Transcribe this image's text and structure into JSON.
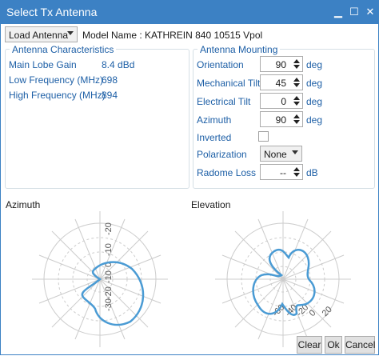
{
  "window": {
    "title": "Select Tx Antenna",
    "buttons": {
      "minimize": "▁",
      "maximize": "☐",
      "close": "✕"
    }
  },
  "toolbar": {
    "load_antenna": "Load Antenna",
    "model_label": "Model Name :",
    "model_value": "KATHREIN 840 10515 Vpol"
  },
  "characteristics": {
    "title": "Antenna Characteristics",
    "rows": [
      {
        "label": "Main Lobe Gain",
        "value": "8.4 dBd"
      },
      {
        "label": "Low Frequency (MHz)",
        "value": "698"
      },
      {
        "label": "High Frequency (MHz)",
        "value": "894"
      }
    ]
  },
  "mounting": {
    "title": "Antenna Mounting",
    "orientation": {
      "label": "Orientation",
      "value": "90",
      "unit": "deg"
    },
    "mech_tilt": {
      "label": "Mechanical Tilt",
      "value": "45",
      "unit": "deg"
    },
    "elec_tilt": {
      "label": "Electrical Tilt",
      "value": "0",
      "unit": "deg"
    },
    "azimuth": {
      "label": "Azimuth",
      "value": "90",
      "unit": "deg"
    },
    "inverted": {
      "label": "Inverted",
      "checked": false
    },
    "polarization": {
      "label": "Polarization",
      "value": "None"
    },
    "radome": {
      "label": "Radome Loss",
      "value": "--",
      "unit": "dB"
    }
  },
  "plots": {
    "azimuth": {
      "title": "Azimuth",
      "ticks": [
        "-20",
        "-10",
        "0",
        "-10",
        "-20",
        "-30"
      ]
    },
    "elevation": {
      "title": "Elevation",
      "ticks": [
        "-60",
        "-40",
        "-20",
        "0",
        "20"
      ]
    }
  },
  "footer": {
    "clear": "Clear",
    "ok": "Ok",
    "cancel": "Cancel"
  },
  "colors": {
    "titlebar": "#3c81c4",
    "accent_text": "#1d5fa6",
    "pattern": "#4a9bd4"
  }
}
